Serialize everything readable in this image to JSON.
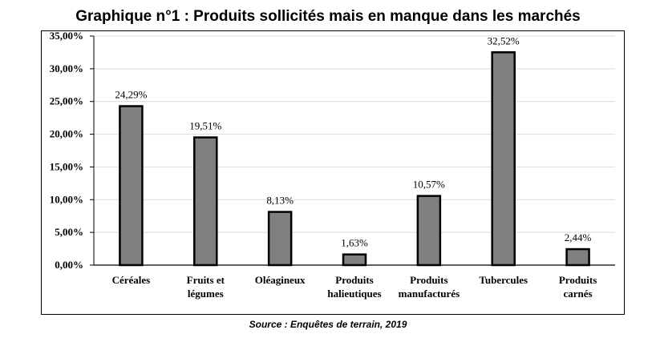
{
  "header": {
    "title": "Graphique n°1 : Produits sollicités mais en manque dans les marchés",
    "source": "Source : Enquêtes de terrain, 2019"
  },
  "chart_data": {
    "type": "bar",
    "categories": [
      [
        "Céréales"
      ],
      [
        "Fruits et",
        "légumes"
      ],
      [
        "Oléagineux"
      ],
      [
        "Produits",
        "halieutiques"
      ],
      [
        "Produits",
        "manufacturés"
      ],
      [
        "Tubercules"
      ],
      [
        "Produits",
        "carnés"
      ]
    ],
    "values": [
      24.29,
      19.51,
      8.13,
      1.63,
      10.57,
      32.52,
      2.44
    ],
    "data_labels": [
      "24,29%",
      "19,51%",
      "8,13%",
      "1,63%",
      "10,57%",
      "32,52%",
      "2,44%"
    ],
    "ylim": [
      0,
      35
    ],
    "yticks": [
      0,
      5,
      10,
      15,
      20,
      25,
      30,
      35
    ],
    "ytick_labels": [
      "0,00%",
      "5,00%",
      "10,00%",
      "15,00%",
      "20,00%",
      "25,00%",
      "30,00%",
      "35,00%"
    ],
    "grid": true,
    "bar_color": "#808080",
    "bar_edge_color": "#000000",
    "grid_color": "#d9d9d9"
  }
}
